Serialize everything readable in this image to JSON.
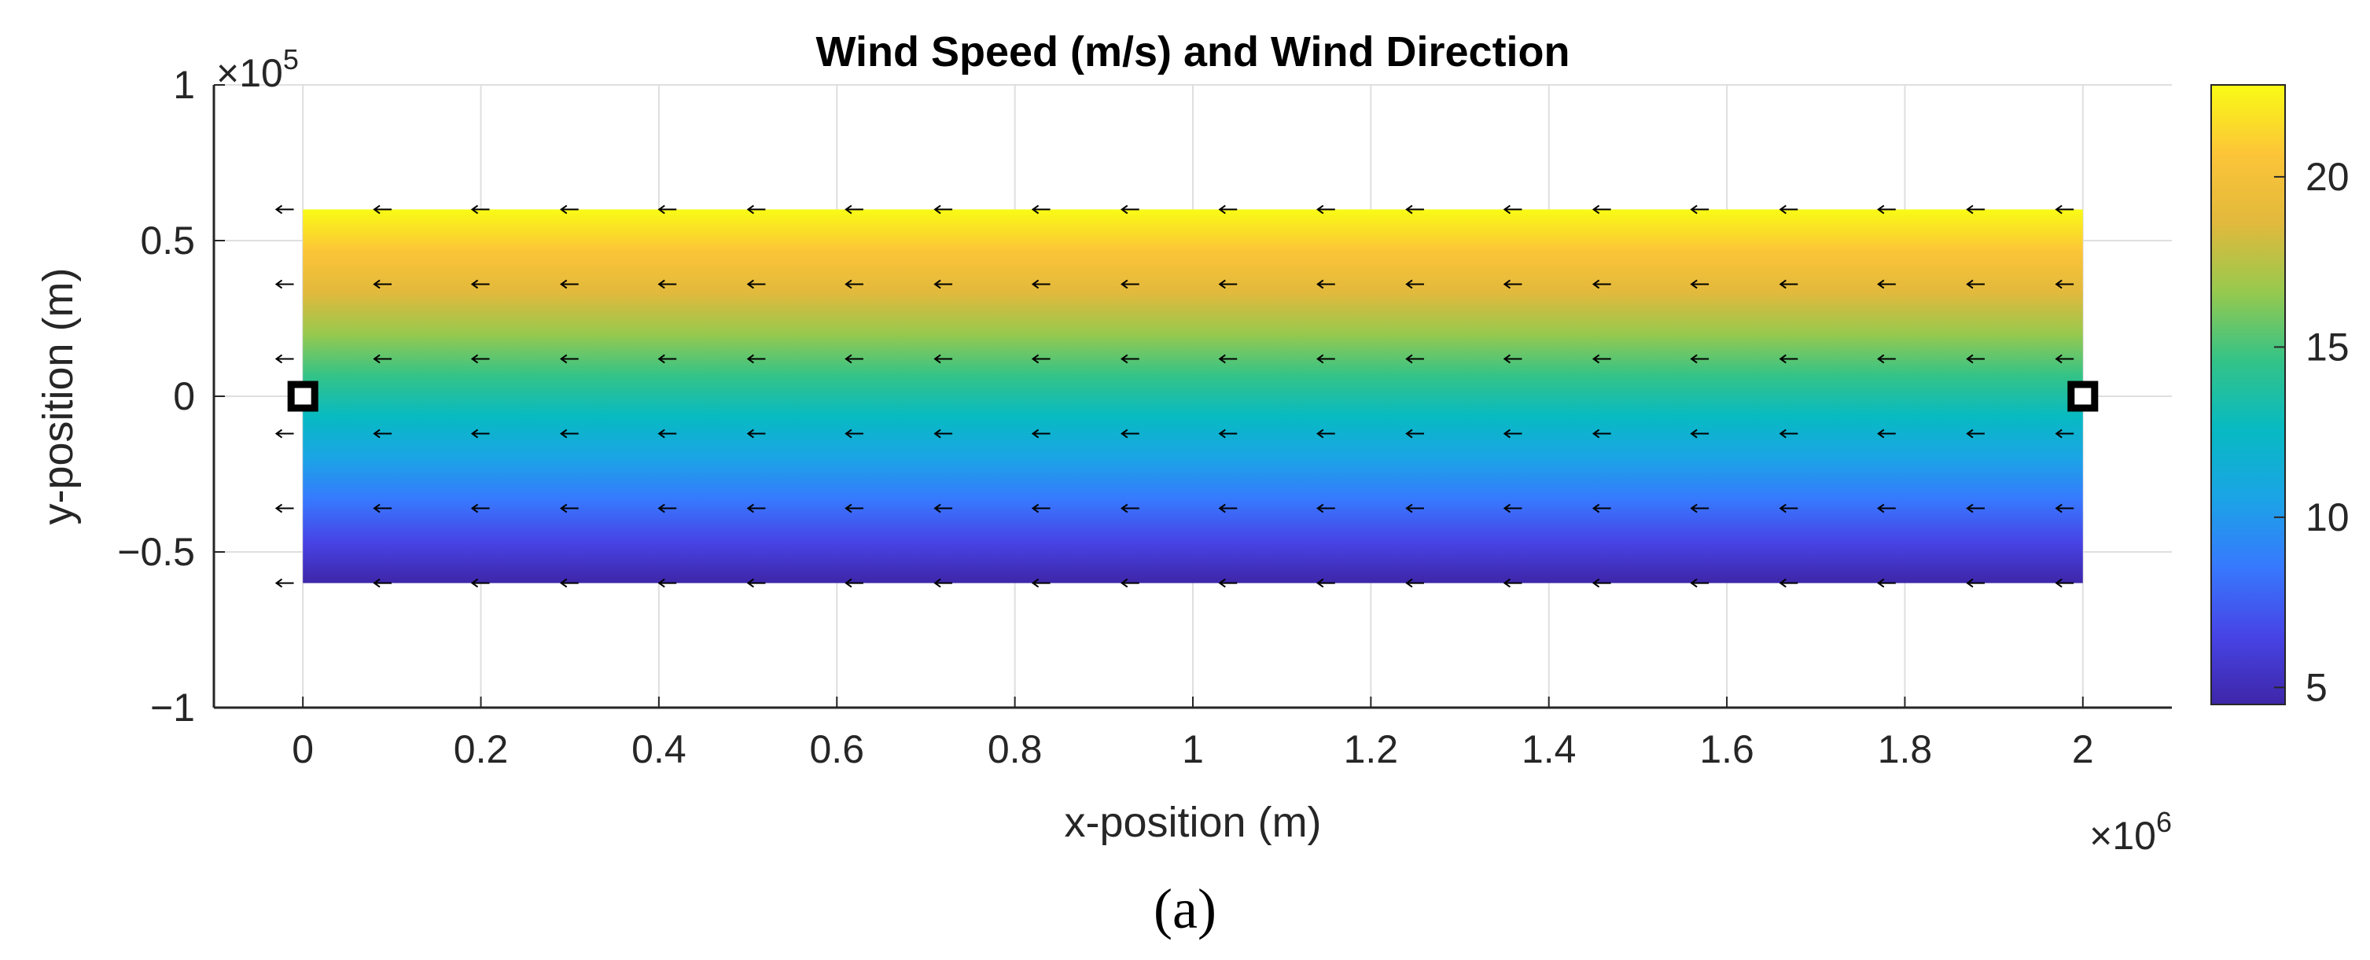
{
  "chart_data": {
    "type": "heatmap",
    "title": "Wind Speed (m/s) and Wind Direction",
    "xlabel": "x-position (m)",
    "ylabel": "y-position (m)",
    "x_exponent_label": "×10",
    "x_exponent_power": "6",
    "y_exponent_label": "×10",
    "y_exponent_power": "5",
    "xlim": [
      -0.1,
      2.1
    ],
    "ylim": [
      -1,
      1
    ],
    "x_ticks": [
      0,
      0.2,
      0.4,
      0.6,
      0.8,
      1,
      1.2,
      1.4,
      1.6,
      1.8,
      2
    ],
    "x_tick_labels": [
      "0",
      "0.2",
      "0.4",
      "0.6",
      "0.8",
      "1",
      "1.2",
      "1.4",
      "1.6",
      "1.8",
      "2"
    ],
    "y_ticks": [
      -1,
      -0.5,
      0,
      0.5,
      1
    ],
    "y_tick_labels": [
      "−1",
      "−0.5",
      "0",
      "0.5",
      "1"
    ],
    "grid": true,
    "field": {
      "x_range": [
        0,
        2
      ],
      "y_range": [
        -0.6,
        0.6
      ],
      "speed_at_y_min": 4.5,
      "speed_at_y_max": 22.7,
      "gradient_direction": "speed increases with y"
    },
    "colorbar": {
      "range": [
        4.5,
        22.7
      ],
      "ticks": [
        5,
        10,
        15,
        20
      ],
      "tick_labels": [
        "5",
        "10",
        "15",
        "20"
      ],
      "colors": [
        "#3e26a8",
        "#4744e6",
        "#3779fe",
        "#1ba4e6",
        "#07bac2",
        "#34c387",
        "#97c94e",
        "#e2b93c",
        "#fcc538",
        "#f9fb15"
      ]
    },
    "quiver": {
      "direction": "negative x",
      "x": [
        -0.02,
        0.09,
        0.2,
        0.3,
        0.41,
        0.51,
        0.62,
        0.72,
        0.83,
        0.93,
        1.04,
        1.15,
        1.25,
        1.36,
        1.46,
        1.57,
        1.67,
        1.78,
        1.88,
        1.98
      ],
      "y": [
        0.6,
        0.36,
        0.12,
        -0.12,
        -0.36,
        -0.6
      ]
    },
    "markers": [
      {
        "x": 0,
        "y": 0,
        "shape": "square"
      },
      {
        "x": 2,
        "y": 0,
        "shape": "square"
      }
    ],
    "panel_label": "(a)"
  }
}
